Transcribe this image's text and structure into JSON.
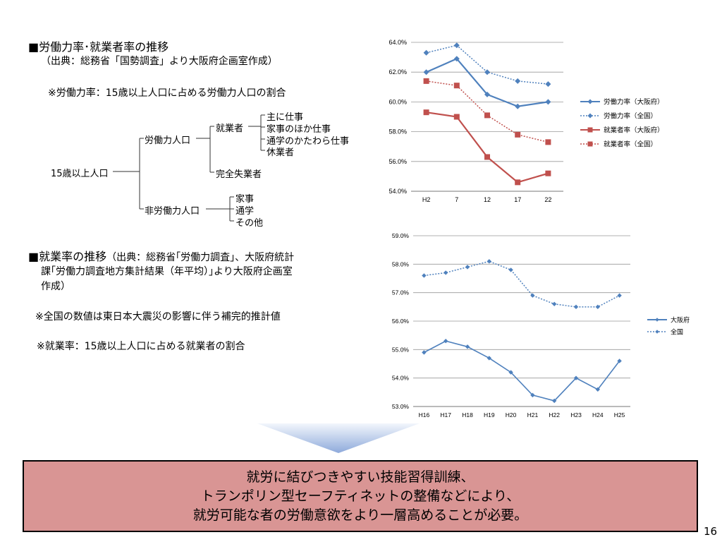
{
  "section1": {
    "title": "■労働力率･就業者率の推移",
    "source": "（出典：総務省「国勢調査」より大阪府企画室作成）",
    "note": "※労働力率：15歳以上人口に占める労働力人口の割合"
  },
  "tree": {
    "root": "15歳以上人口",
    "labor_force": "労働力人口",
    "employed": "就業者",
    "employed_items": [
      "主に仕事",
      "家事のほか仕事",
      "通学のかたわら仕事",
      "休業者"
    ],
    "unemployed": "完全失業者",
    "non_labor": "非労働力人口",
    "non_labor_items": [
      "家事",
      "通学",
      "その他"
    ]
  },
  "section2": {
    "title": "■就業率の推移",
    "source_inline": "（出典：総務省｢労働力調査｣、大阪府統計",
    "source_line2": "課｢労働力調査地方集計結果（年平均）｣より大阪府企画室",
    "source_line3": "作成）",
    "note1": "※全国の数値は東日本大震災の影響に伴う補完的推計値",
    "note2": "※就業率：15歳以上人口に占める就業者の割合"
  },
  "conclusion": {
    "line1": "就労に結びつきやすい技能習得訓練、",
    "line2": "トランポリン型セーフティネットの整備などにより、",
    "line3": "就労可能な者の労働意欲をより一層高めることが必要。"
  },
  "page_number": "16",
  "colors": {
    "blue": "#4f81bd",
    "red": "#c0504d",
    "box": "#d99594",
    "arrow_top": "#f2f6fc",
    "arrow_bottom": "#8eaadb"
  },
  "chart_data": [
    {
      "type": "line",
      "categories": [
        "H2",
        "7",
        "12",
        "17",
        "22"
      ],
      "ylim": [
        54.0,
        64.0
      ],
      "yticks": [
        "54.0%",
        "56.0%",
        "58.0%",
        "60.0%",
        "62.0%",
        "64.0%"
      ],
      "series": [
        {
          "name": "労働力率（大阪府）",
          "style": "solid",
          "marker": "diamond",
          "color": "#4f81bd",
          "values": [
            62.0,
            62.9,
            60.5,
            59.7,
            60.0
          ]
        },
        {
          "name": "労働力率（全国）",
          "style": "dotted",
          "marker": "diamond",
          "color": "#4f81bd",
          "values": [
            63.3,
            63.8,
            62.0,
            61.4,
            61.2
          ]
        },
        {
          "name": "就業者率（大阪府）",
          "style": "solid",
          "marker": "square",
          "color": "#c0504d",
          "values": [
            59.3,
            59.0,
            56.3,
            54.6,
            55.2
          ]
        },
        {
          "name": "就業者率（全国）",
          "style": "dotted",
          "marker": "square",
          "color": "#c0504d",
          "values": [
            61.4,
            61.1,
            59.1,
            57.8,
            57.3
          ]
        }
      ]
    },
    {
      "type": "line",
      "categories": [
        "H16",
        "H17",
        "H18",
        "H19",
        "H20",
        "H21",
        "H22",
        "H23",
        "H24",
        "H25"
      ],
      "ylim": [
        53.0,
        59.0
      ],
      "yticks": [
        "53.0%",
        "54.0%",
        "55.0%",
        "56.0%",
        "57.0%",
        "58.0%",
        "59.0%"
      ],
      "series": [
        {
          "name": "大阪府",
          "style": "solid",
          "marker": "diamond",
          "color": "#4f81bd",
          "values": [
            54.9,
            55.3,
            55.1,
            54.7,
            54.2,
            53.4,
            53.2,
            54.0,
            53.6,
            54.6
          ]
        },
        {
          "name": "全国",
          "style": "dotted",
          "marker": "diamond",
          "color": "#4f81bd",
          "values": [
            57.6,
            57.7,
            57.9,
            58.1,
            57.8,
            56.9,
            56.6,
            56.5,
            56.5,
            56.9
          ]
        }
      ]
    }
  ]
}
